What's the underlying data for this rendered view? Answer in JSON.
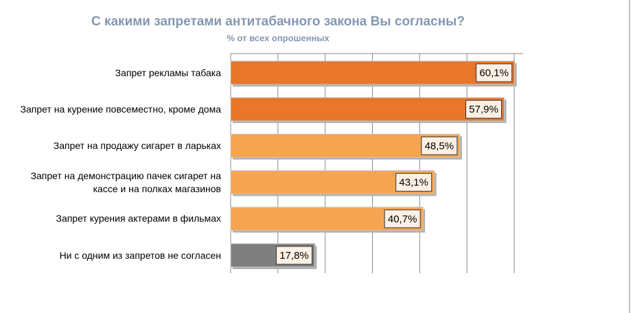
{
  "chart_data": {
    "type": "bar",
    "orientation": "horizontal",
    "title": "С какими запретами антитабачного закона Вы согласны?",
    "subtitle": "% от всех опрошенных",
    "categories": [
      "Запрет рекламы табака",
      "Запрет на курение повсеместно, кроме дома",
      "Запрет на продажу сигарет в ларьках",
      "Запрет на демонстрацию пачек сигарет на кассе и на полках магазинов",
      "Запрет курения актерами в фильмах",
      "Ни с одним из запретов не согласен"
    ],
    "values": [
      60.1,
      57.9,
      48.5,
      43.1,
      40.7,
      17.8
    ],
    "value_labels": [
      "60,1%",
      "57,9%",
      "48,5%",
      "43,1%",
      "40,7%",
      "17,8%"
    ],
    "colors": [
      "#e8762b",
      "#e8762b",
      "#f5a552",
      "#f5a552",
      "#f5a552",
      "#7f7f7f"
    ],
    "xlim": [
      0,
      60
    ],
    "xticks": [
      0,
      10,
      20,
      30,
      40,
      50,
      60
    ],
    "grid": true
  }
}
